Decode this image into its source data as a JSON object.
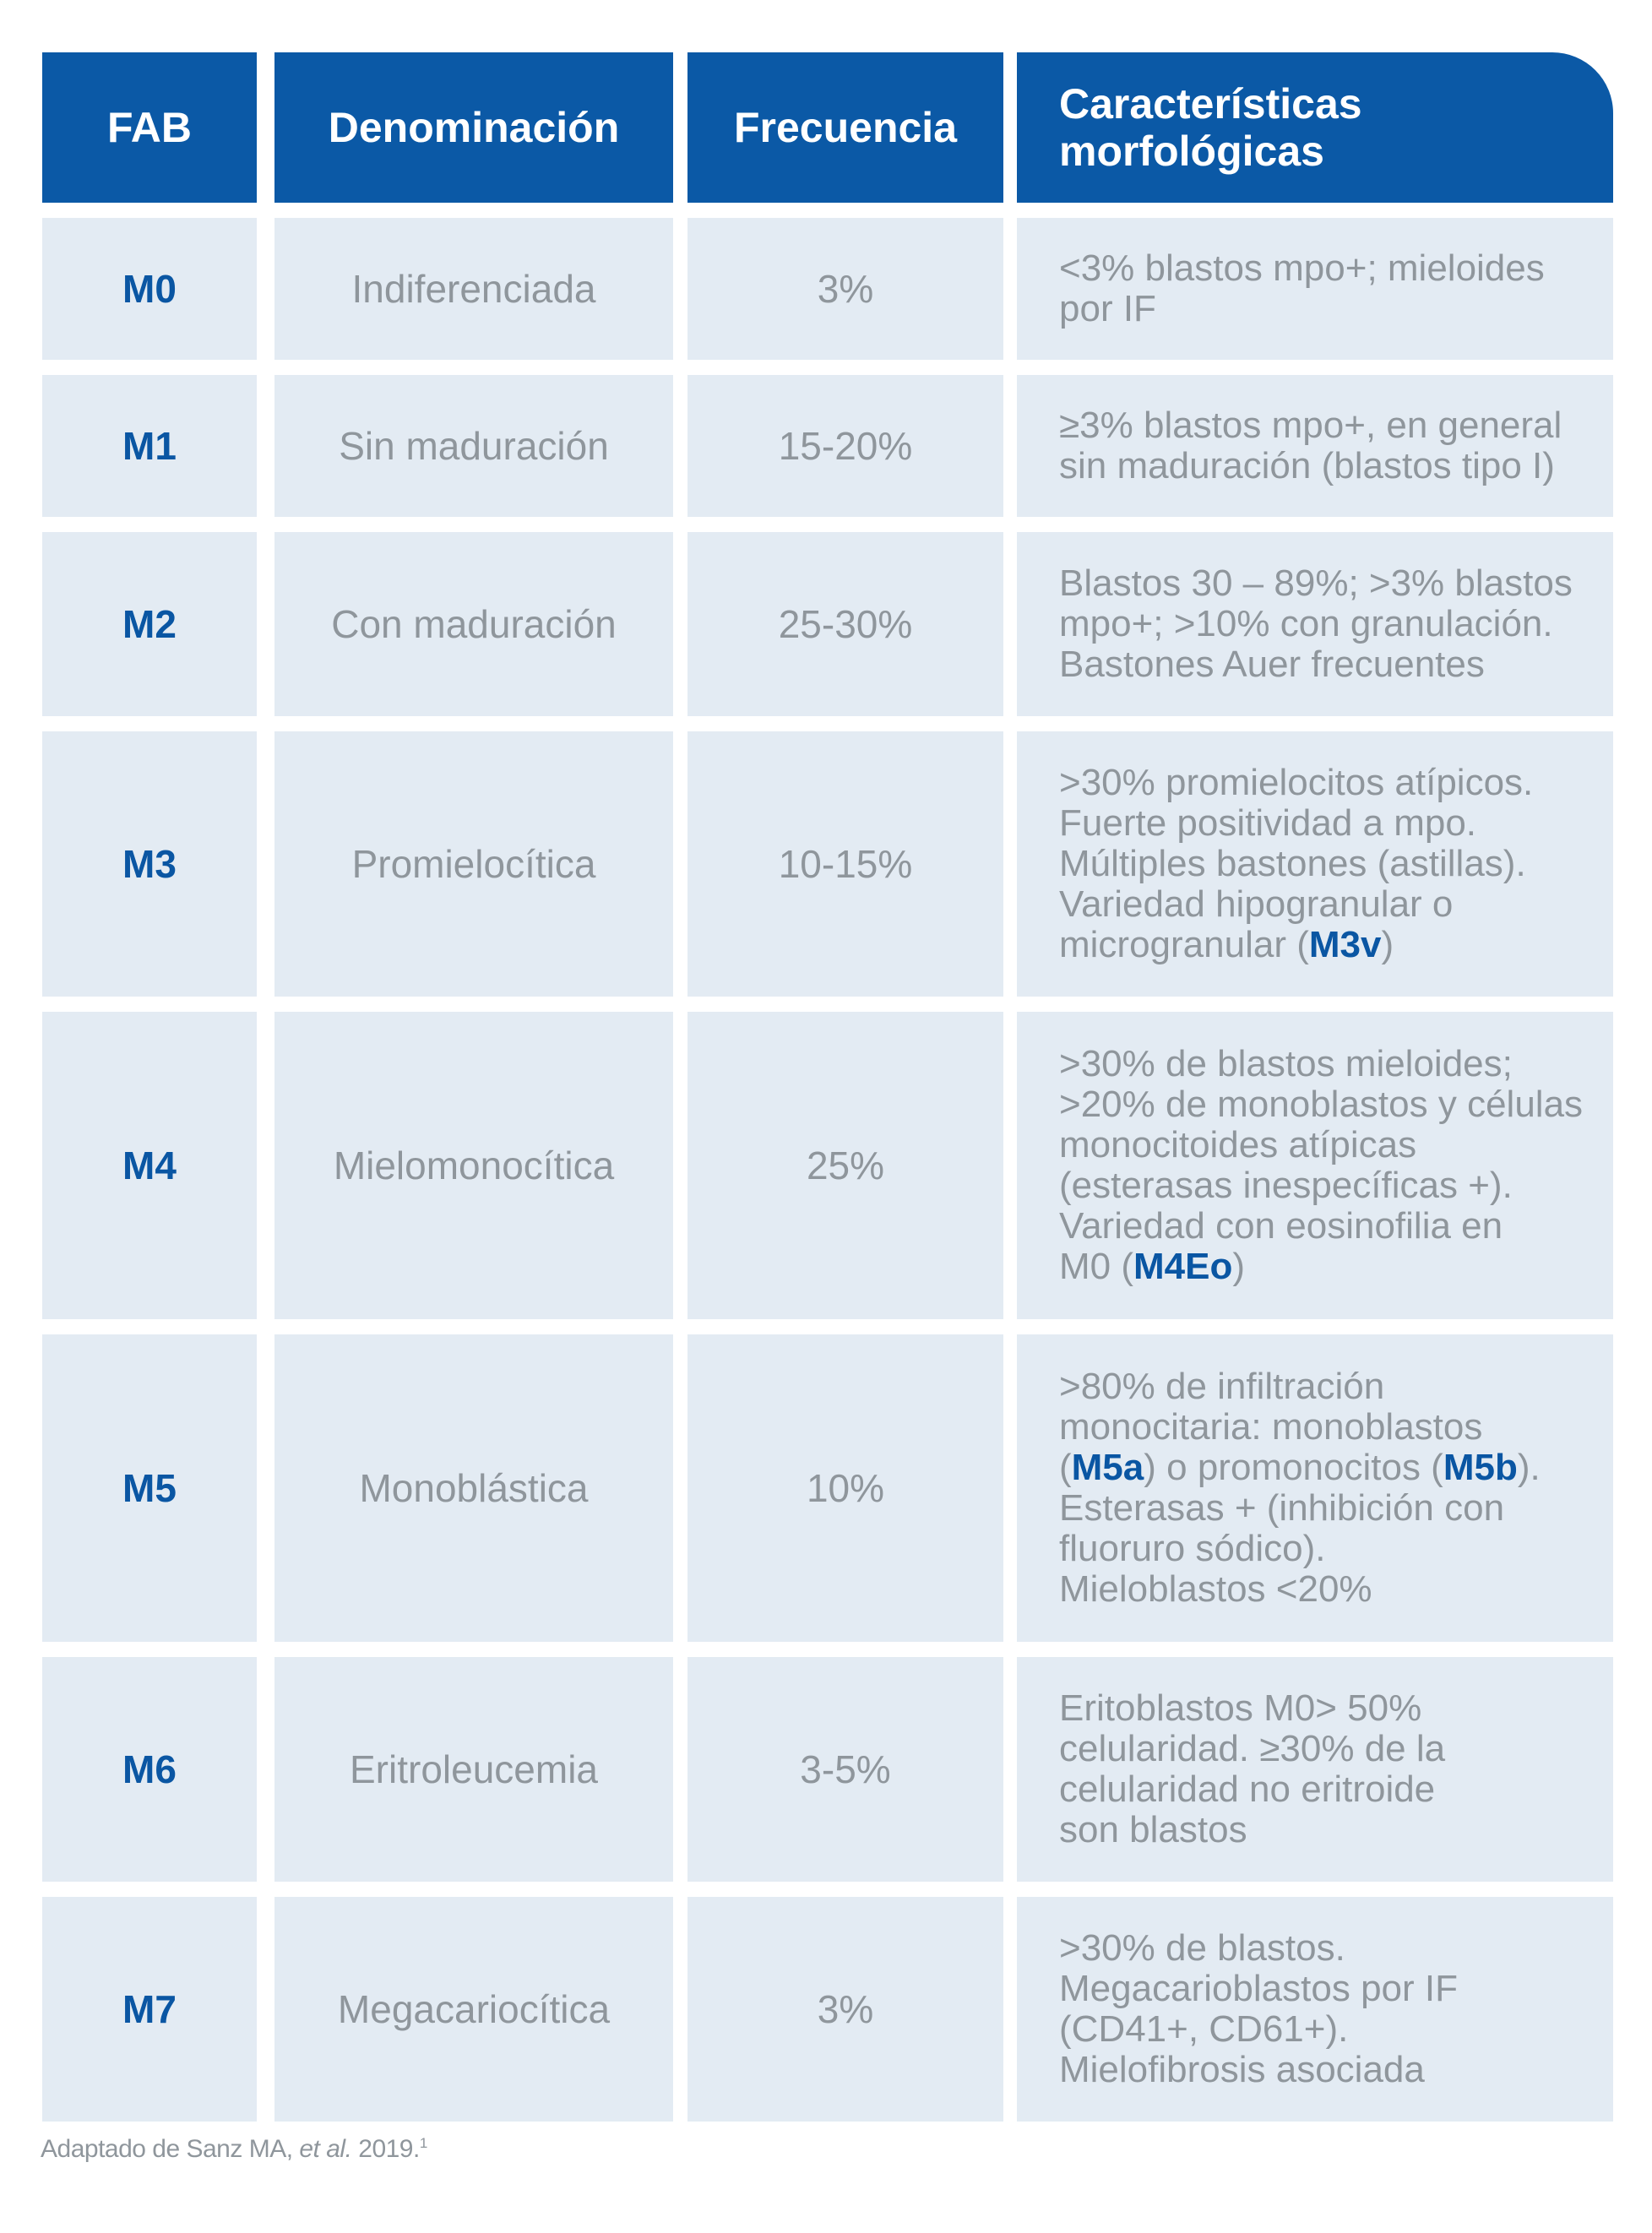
{
  "header": {
    "fab": "FAB",
    "denominacion": "Denominación",
    "frecuencia": "Frecuencia",
    "caracteristicas": "Características\nmorfológicas"
  },
  "rows": [
    {
      "fab": "M0",
      "denominacion": "Indiferenciada",
      "frecuencia": "3%",
      "caracteristicas": "<3% blastos mpo+; mieloides\npor IF"
    },
    {
      "fab": "M1",
      "denominacion": "Sin maduración",
      "frecuencia": "15-20%",
      "caracteristicas": "≥3% blastos mpo+, en general\nsin maduración (blastos tipo I)"
    },
    {
      "fab": "M2",
      "denominacion": "Con maduración",
      "frecuencia": "25-30%",
      "caracteristicas": "Blastos 30 – 89%; >3% blastos\nmpo+; >10% con granulación.\nBastones Auer frecuentes"
    },
    {
      "fab": "M3",
      "denominacion": "Promielocítica",
      "frecuencia": "10-15%",
      "caracteristicas": ">30% promielocitos atípicos.\nFuerte positividad a mpo.\nMúltiples bastones (astillas).\nVariedad hipogranular o\nmicrogranular (",
      "highlight": "M3v",
      "caracteristicas_end": ")"
    },
    {
      "fab": "M4",
      "denominacion": "Mielomonocítica",
      "frecuencia": "25%",
      "caracteristicas": ">30% de blastos mieloides;\n>20% de monoblastos y células\nmonocitoides atípicas\n(esterasas inespecíficas +).\nVariedad con eosinofilia en\nM0 (",
      "highlight": "M4Eo",
      "caracteristicas_end": ")"
    },
    {
      "fab": "M5",
      "denominacion": "Monoblástica",
      "frecuencia": "10%",
      "caracteristicas_a": ">80% de infiltración\nmonocitaria: monoblastos\n(",
      "highlight_a": "M5a",
      "caracteristicas_b": ") o promonocitos (",
      "highlight_b": "M5b",
      "caracteristicas_c": ").\nEsterasas + (inhibición con\nfluoruro sódico).\nMieloblastos <20%"
    },
    {
      "fab": "M6",
      "denominacion": "Eritroleucemia",
      "frecuencia": "3-5%",
      "caracteristicas": "Eritoblastos M0> 50%\ncelularidad. ≥30% de la\ncelularidad no eritroide\nson blastos"
    },
    {
      "fab": "M7",
      "denominacion": "Megacariocítica",
      "frecuencia": "3%",
      "caracteristicas": ">30% de blastos.\n Megacarioblastos por IF\n(CD41+, CD61+).\nMielofibrosis asociada"
    }
  ],
  "footer": {
    "prefix": "Adaptado de Sanz MA, ",
    "etal": "et al.",
    "suffix": " 2019.",
    "ref": "1"
  },
  "colors": {
    "header_bg": "#0b59a6",
    "cell_bg": "#e3ebf3",
    "code_text": "#0a56a3",
    "body_text": "#8f969c"
  }
}
